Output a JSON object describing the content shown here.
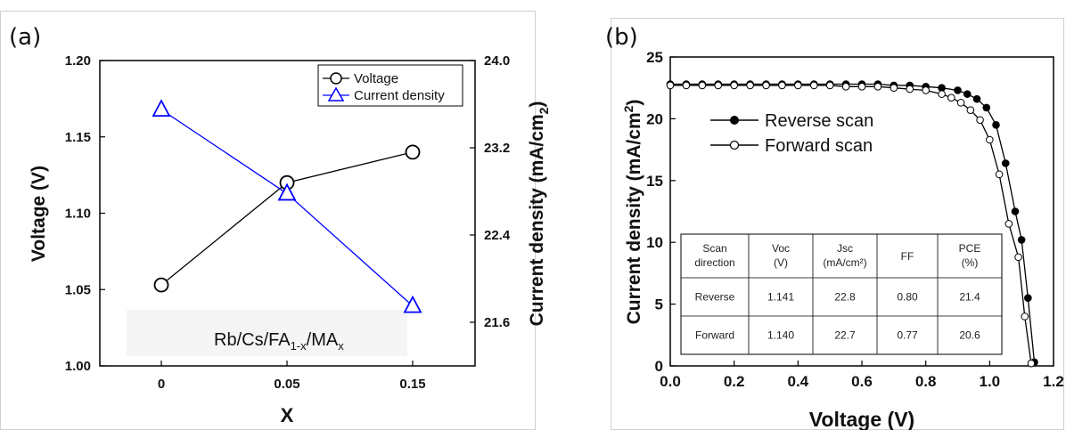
{
  "chart_data": [
    {
      "panel_label": "(a)",
      "type": "line",
      "categories": [
        "0",
        "0.05",
        "0.15"
      ],
      "xlabel": "X",
      "ylabel": "Voltage (V)",
      "ylabel_right": "Current density (mA/cm",
      "ylabel_right_sub": "2",
      "ylabel_right_close": ")",
      "ylim": [
        1.0,
        1.2
      ],
      "yticks": [
        "1.00",
        "1.05",
        "1.10",
        "1.15",
        "1.20"
      ],
      "ylim_right": [
        21.2,
        24.0
      ],
      "yticks_right": [
        "21.6",
        "22.4",
        "23.2",
        "24.0"
      ],
      "series": [
        {
          "name": "Voltage",
          "axis": "left",
          "marker": "circle",
          "color": "#000000",
          "values": [
            1.053,
            1.12,
            1.14
          ]
        },
        {
          "name": "Current density",
          "axis": "right",
          "marker": "triangle",
          "color": "#0000ff",
          "values": [
            23.55,
            22.78,
            21.75
          ]
        }
      ],
      "annotation": {
        "prefix": "Rb/Cs/FA",
        "sub1": "1-x",
        "middle": "/MA",
        "sub2": "x"
      },
      "legend": "top-right"
    },
    {
      "panel_label": "(b)",
      "type": "line",
      "xlabel": "Voltage (V)",
      "ylabel": "Current density (mA/cm",
      "ylabel_sup": "2",
      "ylabel_close": ")",
      "xlim": [
        0.0,
        1.2
      ],
      "xticks": [
        "0.0",
        "0.2",
        "0.4",
        "0.6",
        "0.8",
        "1.0",
        "1.2"
      ],
      "ylim": [
        0,
        25
      ],
      "yticks": [
        "0",
        "5",
        "10",
        "15",
        "20",
        "25"
      ],
      "series": [
        {
          "name": "Reverse scan",
          "marker": "filled-circle",
          "color": "#000000",
          "x": [
            0.0,
            0.05,
            0.1,
            0.15,
            0.2,
            0.25,
            0.3,
            0.35,
            0.4,
            0.45,
            0.5,
            0.55,
            0.6,
            0.65,
            0.7,
            0.75,
            0.8,
            0.85,
            0.9,
            0.93,
            0.96,
            0.99,
            1.02,
            1.05,
            1.08,
            1.1,
            1.12,
            1.14
          ],
          "y": [
            22.8,
            22.8,
            22.8,
            22.8,
            22.8,
            22.8,
            22.8,
            22.8,
            22.8,
            22.8,
            22.8,
            22.8,
            22.8,
            22.8,
            22.7,
            22.7,
            22.6,
            22.5,
            22.3,
            22.0,
            21.6,
            20.9,
            19.5,
            16.4,
            12.5,
            10.2,
            5.5,
            0.3
          ]
        },
        {
          "name": "Forward scan",
          "marker": "open-circle",
          "color": "#000000",
          "x": [
            0.0,
            0.05,
            0.1,
            0.15,
            0.2,
            0.25,
            0.3,
            0.35,
            0.4,
            0.45,
            0.5,
            0.55,
            0.6,
            0.65,
            0.7,
            0.75,
            0.8,
            0.85,
            0.88,
            0.91,
            0.94,
            0.97,
            1.0,
            1.03,
            1.06,
            1.09,
            1.11,
            1.13
          ],
          "y": [
            22.7,
            22.7,
            22.7,
            22.7,
            22.7,
            22.7,
            22.7,
            22.7,
            22.7,
            22.7,
            22.7,
            22.6,
            22.6,
            22.6,
            22.5,
            22.4,
            22.3,
            22.0,
            21.7,
            21.3,
            20.7,
            19.9,
            18.3,
            15.5,
            11.5,
            8.8,
            4.0,
            0.2
          ]
        }
      ],
      "legend": "top-left",
      "table": {
        "header": [
          [
            "Scan",
            "direction"
          ],
          [
            "Voc",
            "(V)"
          ],
          [
            "Jsc",
            "(mA/cm²)"
          ],
          [
            "FF",
            ""
          ],
          [
            "PCE",
            "(%)"
          ]
        ],
        "rows": [
          [
            "Reverse",
            "1.141",
            "22.8",
            "0.80",
            "21.4"
          ],
          [
            "Forward",
            "1.140",
            "22.7",
            "0.77",
            "20.6"
          ]
        ]
      }
    }
  ]
}
